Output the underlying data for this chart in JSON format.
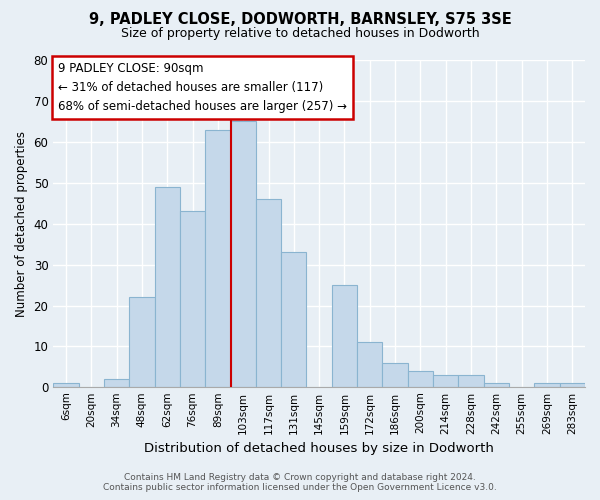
{
  "title": "9, PADLEY CLOSE, DODWORTH, BARNSLEY, S75 3SE",
  "subtitle": "Size of property relative to detached houses in Dodworth",
  "xlabel": "Distribution of detached houses by size in Dodworth",
  "ylabel": "Number of detached properties",
  "bar_color": "#c5d8ea",
  "bar_edge_color": "#8ab4d0",
  "bin_labels": [
    "6sqm",
    "20sqm",
    "34sqm",
    "48sqm",
    "62sqm",
    "76sqm",
    "89sqm",
    "103sqm",
    "117sqm",
    "131sqm",
    "145sqm",
    "159sqm",
    "172sqm",
    "186sqm",
    "200sqm",
    "214sqm",
    "228sqm",
    "242sqm",
    "255sqm",
    "269sqm",
    "283sqm"
  ],
  "bar_heights": [
    1,
    0,
    2,
    22,
    49,
    43,
    63,
    65,
    46,
    33,
    0,
    25,
    11,
    6,
    4,
    3,
    3,
    1,
    0,
    1,
    1
  ],
  "ylim": [
    0,
    80
  ],
  "yticks": [
    0,
    10,
    20,
    30,
    40,
    50,
    60,
    70,
    80
  ],
  "vline_x_index": 6,
  "vline_color": "#cc0000",
  "annotation_title": "9 PADLEY CLOSE: 90sqm",
  "annotation_line2": "← 31% of detached houses are smaller (117)",
  "annotation_line3": "68% of semi-detached houses are larger (257) →",
  "annotation_box_edgecolor": "#cc0000",
  "annotation_box_facecolor": "#ffffff",
  "background_color": "#e8eff5",
  "grid_color": "#ffffff",
  "footer_line1": "Contains HM Land Registry data © Crown copyright and database right 2024.",
  "footer_line2": "Contains public sector information licensed under the Open Government Licence v3.0."
}
